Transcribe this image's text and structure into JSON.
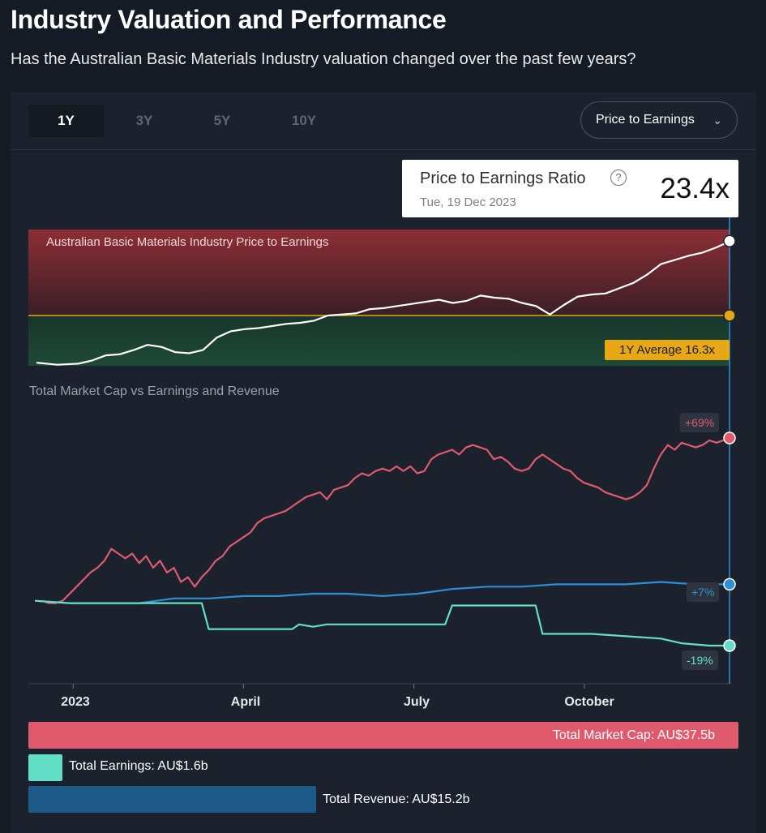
{
  "header": {
    "title": "Industry Valuation and Performance",
    "subtitle": "Has the Australian Basic Materials Industry valuation changed over the past few years?"
  },
  "tabs": [
    {
      "label": "1Y",
      "active": true
    },
    {
      "label": "3Y",
      "active": false
    },
    {
      "label": "5Y",
      "active": false
    },
    {
      "label": "10Y",
      "active": false
    }
  ],
  "metric_select": {
    "value": "Price to Earnings"
  },
  "tooltip": {
    "label": "Price to Earnings Ratio",
    "help": "?",
    "date": "Tue, 19 Dec 2023",
    "value": "23.4x"
  },
  "colors": {
    "market_cap": "#e05a6e",
    "earnings": "#63dfc8",
    "revenue": "#2f8fd6",
    "revenue_bar": "#1d5a8a",
    "average": "#e6a817",
    "band_high": "#8d2e35",
    "band_low": "#1e4a35"
  },
  "chart_data": [
    {
      "type": "line",
      "title": "Australian Basic Materials Industry Price to Earnings",
      "unit": "x",
      "average": 16.3,
      "average_label": "1Y Average 16.3x",
      "current": 23.4,
      "ylim": [
        11.5,
        24.5
      ],
      "x": [
        0,
        3,
        6,
        8,
        10,
        12,
        14,
        16,
        18,
        20,
        22,
        24,
        26,
        28,
        30,
        32,
        34,
        36,
        38,
        40,
        42,
        44,
        46,
        48,
        50,
        52,
        54,
        56,
        58,
        60,
        62,
        64,
        66,
        68,
        70,
        72,
        74,
        76,
        78,
        80,
        82,
        84,
        86,
        88,
        90,
        92,
        94,
        96,
        98,
        100
      ],
      "values": [
        11.8,
        11.6,
        11.7,
        12.0,
        12.5,
        12.6,
        13.0,
        13.5,
        13.3,
        12.8,
        12.7,
        13.0,
        14.2,
        14.8,
        15.0,
        15.1,
        15.3,
        15.5,
        15.6,
        15.8,
        16.3,
        16.4,
        16.5,
        16.9,
        17.0,
        17.2,
        17.4,
        17.6,
        17.8,
        17.5,
        17.7,
        18.2,
        18.0,
        17.9,
        17.5,
        17.2,
        16.4,
        17.3,
        18.1,
        18.3,
        18.4,
        18.9,
        19.4,
        20.2,
        21.2,
        21.6,
        22.0,
        22.3,
        22.8,
        23.4
      ]
    },
    {
      "type": "line",
      "title": "Total Market Cap vs Earnings and Revenue",
      "xlim": [
        0,
        100
      ],
      "x_ticks": [
        {
          "label": "2023",
          "x": 5.5
        },
        {
          "label": "April",
          "x": 30.0
        },
        {
          "label": "July",
          "x": 54.5
        },
        {
          "label": "October",
          "x": 79.0
        }
      ],
      "ylim": [
        -30,
        80
      ],
      "series": [
        {
          "name": "Total Market Cap",
          "badge": "+69%",
          "x": [
            1,
            2,
            3,
            4,
            5,
            6,
            7,
            8,
            9,
            10,
            11,
            12,
            13,
            14,
            15,
            16,
            17,
            18,
            19,
            20,
            21,
            22,
            23,
            24,
            25,
            26,
            27,
            28,
            29,
            30,
            31,
            32,
            33,
            34,
            35,
            36,
            37,
            38,
            39,
            40,
            41,
            42,
            43,
            44,
            45,
            46,
            47,
            48,
            49,
            50,
            51,
            52,
            53,
            54,
            55,
            56,
            57,
            58,
            59,
            60,
            61,
            62,
            63,
            64,
            65,
            66,
            67,
            68,
            69,
            70,
            71,
            72,
            73,
            74,
            75,
            76,
            77,
            78,
            79,
            80,
            81,
            82,
            83,
            84,
            85,
            86,
            87,
            88,
            89,
            90,
            91,
            92,
            93,
            94,
            95,
            96,
            97,
            98,
            99,
            100
          ],
          "values": [
            0,
            -1,
            -1,
            0,
            3,
            6,
            9,
            12,
            14,
            17,
            22,
            20,
            18,
            20,
            16,
            19,
            14,
            17,
            12,
            14,
            8,
            10,
            6,
            10,
            13,
            17,
            19,
            23,
            25,
            27,
            29,
            33,
            35,
            36,
            37,
            38,
            40,
            42,
            44,
            45,
            46,
            43,
            47,
            48,
            49,
            52,
            54,
            53,
            55,
            56,
            55,
            57,
            55,
            57,
            54,
            55,
            60,
            62,
            63,
            64,
            62,
            65,
            66,
            65,
            64,
            60,
            61,
            59,
            56,
            55,
            56,
            60,
            62,
            60,
            58,
            56,
            55,
            52,
            50,
            49,
            48,
            46,
            45,
            44,
            43,
            44,
            46,
            49,
            56,
            62,
            66,
            64,
            67,
            66,
            65,
            66,
            68,
            67,
            68,
            69
          ]
        },
        {
          "name": "Total Revenue",
          "badge": "+7%",
          "x": [
            0,
            5,
            10,
            15,
            20,
            25,
            30,
            35,
            40,
            45,
            50,
            55,
            60,
            65,
            70,
            75,
            80,
            85,
            90,
            95,
            100
          ],
          "values": [
            0,
            -1,
            -1,
            -1,
            1,
            1,
            2,
            2,
            3,
            3,
            2,
            3,
            5,
            6,
            6,
            7,
            7,
            7,
            8,
            7,
            7
          ]
        },
        {
          "name": "Total Earnings",
          "badge": "-19%",
          "x": [
            0,
            5,
            10,
            15,
            20,
            24,
            25,
            26,
            30,
            35,
            37,
            38,
            40,
            42,
            45,
            50,
            55,
            59,
            60,
            62,
            65,
            70,
            72,
            73,
            75,
            80,
            85,
            90,
            93,
            97,
            100
          ],
          "values": [
            0,
            -1,
            -1,
            -1,
            -1,
            -1,
            -12,
            -12,
            -12,
            -12,
            -12,
            -10,
            -11,
            -10,
            -10,
            -10,
            -10,
            -10,
            -2,
            -2,
            -2,
            -2,
            -2,
            -14,
            -14,
            -14,
            -15,
            -16,
            -18,
            -19,
            -19
          ]
        }
      ]
    },
    {
      "type": "bar",
      "title": "Totals",
      "unit": "AU$b",
      "categories": [
        "Total Market Cap",
        "Total Earnings",
        "Total Revenue"
      ],
      "values": [
        37.5,
        1.6,
        15.2
      ],
      "labels": [
        "Total Market Cap: AU$37.5b",
        "Total Earnings: AU$1.6b",
        "Total Revenue: AU$15.2b"
      ]
    }
  ]
}
